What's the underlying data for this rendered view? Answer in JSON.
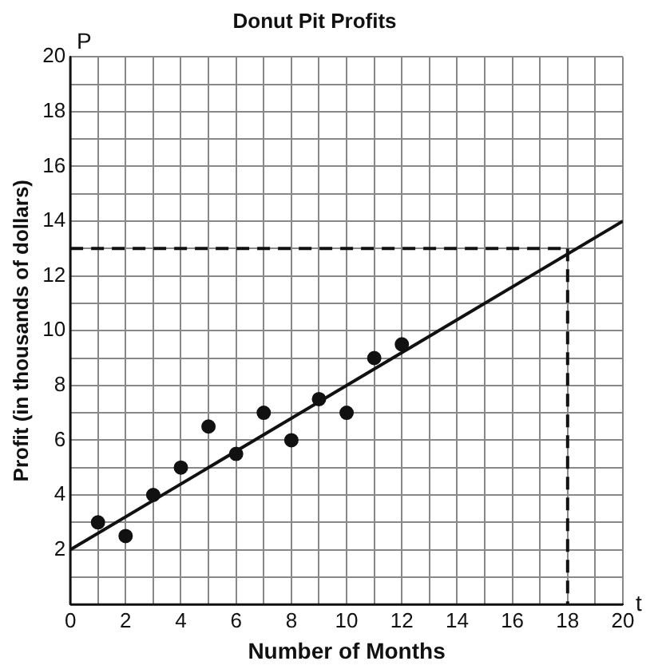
{
  "chart_data": {
    "type": "scatter",
    "title": "Donut Pit Profits",
    "xlabel": "Number of Months",
    "ylabel": "Profit (in thousands of dollars)",
    "annotations": [
      "P",
      "t"
    ],
    "x": [
      1,
      2,
      3,
      4,
      5,
      6,
      7,
      8,
      9,
      10,
      11,
      12
    ],
    "series": [
      {
        "color": "#111111",
        "marker": "circle",
        "values": [
          3,
          2.5,
          4,
          5,
          6.5,
          5.5,
          7,
          6,
          7.5,
          7,
          9,
          9.5
        ]
      },
      {
        "type": "line",
        "color": "#111111",
        "x": [
          0,
          20
        ],
        "values": [
          2,
          14
        ],
        "line_style": "solid",
        "marker": "none"
      },
      {
        "type": "line",
        "color": "#111111",
        "x": [
          0,
          18
        ],
        "values": [
          13,
          13
        ],
        "line_style": "dashed",
        "marker": "none"
      },
      {
        "type": "line",
        "color": "#111111",
        "x": [
          18,
          18
        ],
        "values": [
          13,
          0
        ],
        "line_style": "dashed",
        "marker": "none"
      }
    ],
    "xlim": [
      0,
      20
    ],
    "ylim": [
      0,
      20
    ],
    "xticks": [
      0,
      {
        "value": 1,
        "label": null
      },
      2,
      {
        "value": 3,
        "label": null
      },
      4,
      {
        "value": 5,
        "label": null
      },
      6,
      {
        "value": 7,
        "label": null
      },
      8,
      {
        "value": 9,
        "label": null
      },
      10,
      {
        "value": 11,
        "label": null
      },
      12,
      {
        "value": 13,
        "label": null
      },
      14,
      {
        "value": 15,
        "label": null
      },
      16,
      {
        "value": 17,
        "label": null
      },
      18,
      {
        "value": 19,
        "label": null
      },
      20
    ],
    "yticks": [
      {
        "value": 0,
        "label": null
      },
      {
        "value": 1,
        "label": null
      },
      2,
      {
        "value": 3,
        "label": null
      },
      4,
      {
        "value": 5,
        "label": null
      },
      6,
      {
        "value": 7,
        "label": null
      },
      8,
      {
        "value": 9,
        "label": null
      },
      10,
      {
        "value": 11,
        "label": null
      },
      12,
      {
        "value": 13,
        "label": null
      },
      14,
      {
        "value": 15,
        "label": null
      },
      16,
      {
        "value": 17,
        "label": null
      },
      18,
      {
        "value": 19,
        "label": null
      },
      20
    ],
    "grid": true,
    "legend": false
  }
}
